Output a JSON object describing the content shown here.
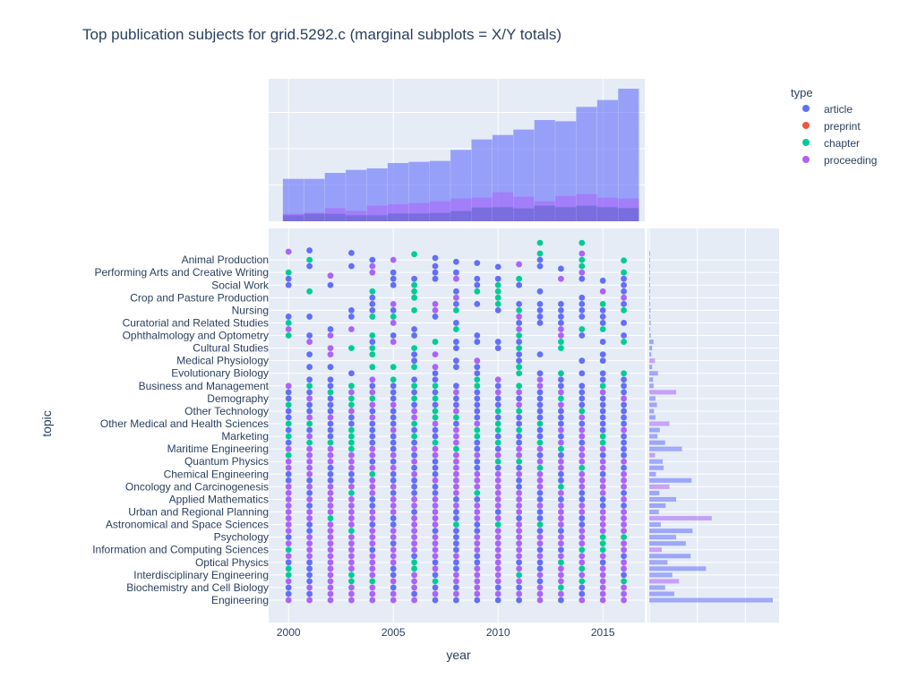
{
  "chart_data": {
    "type": "scatter",
    "title": "Top publication subjects for grid.5292.c (marginal subplots = X/Y totals)",
    "xlabel": "year",
    "ylabel": "topic",
    "xlim": [
      1999.05,
      2017.0
    ],
    "x_ticks": [
      "2000",
      "2005",
      "2010",
      "2015"
    ],
    "x_tick_values": [
      2000,
      2005,
      2010,
      2015
    ],
    "years": [
      2000,
      2001,
      2002,
      2003,
      2004,
      2005,
      2006,
      2007,
      2008,
      2009,
      2010,
      2011,
      2012,
      2013,
      2014,
      2015,
      2016
    ],
    "topic_ticks": [
      "Engineering",
      "Biochemistry and Cell Biology",
      "Interdisciplinary Engineering",
      "Optical Physics",
      "Information and Computing Sciences",
      "Psychology",
      "Astronomical and Space Sciences",
      "Urban and Regional Planning",
      "Applied Mathematics",
      "Oncology and Carcinogenesis",
      "Chemical Engineering",
      "Quantum Physics",
      "Maritime Engineering",
      "Marketing",
      "Other Medical and Health Sciences",
      "Other Technology",
      "Demography",
      "Business and Management",
      "Evolutionary Biology",
      "Medical Physiology",
      "Cultural Studies",
      "Ophthalmology and Optometry",
      "Curatorial and Related Studies",
      "Nursing",
      "Crop and Pasture Production",
      "Social Work",
      "Performing Arts and Creative Writing",
      "Animal Production"
    ],
    "topic_max_rank_per_year": [
      55.3,
      55.5,
      51.5,
      55.1,
      54,
      54,
      54.9,
      54.3,
      53.7,
      53.5,
      52.9,
      53.3,
      56.7,
      52.6,
      56.7,
      50.7,
      53.9
    ],
    "legend": {
      "title": "type",
      "placement": "top-right",
      "entries": [
        "article",
        "preprint",
        "chapter",
        "proceeding"
      ]
    },
    "colors": {
      "article": "#636efa",
      "preprint": "#EF553B",
      "chapter": "#00cc96",
      "proceeding": "#ab63fa",
      "plot_bg": "#E5ECF6"
    },
    "marginal_x": {
      "type": "histogram",
      "series": [
        {
          "name": "article",
          "values": [
            1169,
            1169,
            1333,
            1416,
            1457,
            1605,
            1638,
            1663,
            1967,
            2255,
            2379,
            2527,
            2790,
            2757,
            3152,
            3342,
            3654
          ]
        },
        {
          "name": "proceeding",
          "values": [
            206,
            239,
            362,
            288,
            428,
            469,
            502,
            551,
            625,
            650,
            798,
            675,
            551,
            700,
            749,
            650,
            625
          ]
        },
        {
          "name": "chapter",
          "values": [
            165,
            206,
            206,
            165,
            165,
            214,
            214,
            230,
            280,
            379,
            387,
            354,
            428,
            387,
            428,
            387,
            362
          ]
        }
      ]
    },
    "marginal_y": {
      "type": "histogram",
      "orientation": "h",
      "values": [
        2570,
        520,
        330,
        620,
        480,
        1180,
        380,
        860,
        260,
        760,
        560,
        900,
        240,
        1300,
        200,
        340,
        560,
        210,
        420,
        880,
        140,
        300,
        280,
        120,
        680,
        330,
        170,
        220,
        420,
        130,
        100,
        160,
        130,
        560,
        90,
        80,
        180,
        60,
        120,
        40,
        60,
        90,
        30,
        20,
        30,
        20,
        25,
        20,
        15,
        20,
        15,
        10,
        12,
        10,
        15,
        10
      ]
    }
  }
}
